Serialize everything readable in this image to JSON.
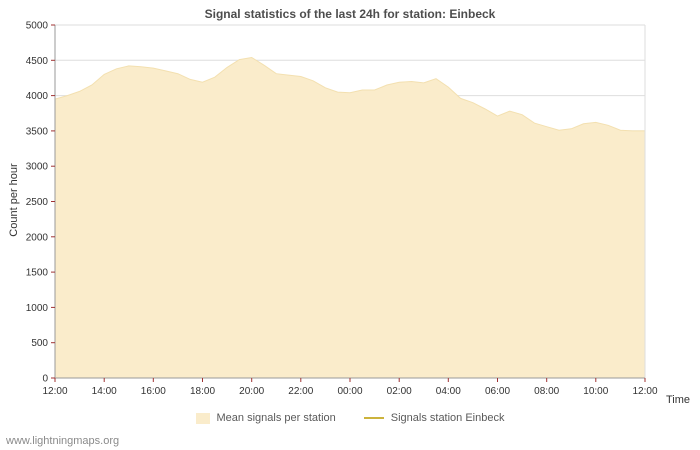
{
  "colors": {
    "area": "#faeccb",
    "area_edge": "#f3e0b0",
    "station_line": "#ccb33c",
    "grid": "#dedede",
    "axis": "#9a9a9a",
    "tick": "#a03232",
    "tick_text": "#333333",
    "title_text": "#4d4d4d"
  },
  "watermark": "www.lightningmaps.org",
  "chart_data": {
    "type": "area",
    "title": "Signal statistics of the last 24h for station: Einbeck",
    "xlabel": "Time",
    "ylabel": "Count per hour",
    "ylim": [
      0,
      5000
    ],
    "y_ticks": [
      0,
      500,
      1000,
      1500,
      2000,
      2500,
      3000,
      3500,
      4000,
      4500,
      5000
    ],
    "x_tick_labels": [
      "12:00",
      "14:00",
      "16:00",
      "18:00",
      "20:00",
      "22:00",
      "00:00",
      "02:00",
      "04:00",
      "06:00",
      "08:00",
      "10:00",
      "12:00"
    ],
    "x_hours_span": 24,
    "grid": "horizontal",
    "legend_position": "bottom-center",
    "legend": [
      {
        "label": "Mean signals per station",
        "type": "area",
        "color": "#faeccb"
      },
      {
        "label": "Signals station Einbeck",
        "type": "line",
        "color": "#ccb33c"
      }
    ],
    "series": [
      {
        "name": "Mean signals per station",
        "x": [
          0,
          0.5,
          1,
          1.5,
          2,
          2.5,
          3,
          3.5,
          4,
          4.5,
          5,
          5.5,
          6,
          6.5,
          7,
          7.5,
          8,
          8.5,
          9,
          9.5,
          10,
          10.5,
          11,
          11.5,
          12,
          12.5,
          13,
          13.5,
          14,
          14.5,
          15,
          15.5,
          16,
          16.5,
          17,
          17.5,
          18,
          18.5,
          19,
          19.5,
          20,
          20.5,
          21,
          21.5,
          22,
          22.5,
          23,
          23.5,
          24
        ],
        "values": [
          3950,
          4000,
          4060,
          4150,
          4300,
          4380,
          4420,
          4410,
          4390,
          4350,
          4310,
          4230,
          4190,
          4260,
          4400,
          4510,
          4540,
          4430,
          4310,
          4290,
          4270,
          4210,
          4110,
          4050,
          4040,
          4080,
          4080,
          4150,
          4190,
          4200,
          4180,
          4240,
          4120,
          3960,
          3900,
          3810,
          3710,
          3780,
          3730,
          3610,
          3560,
          3510,
          3530,
          3600,
          3620,
          3580,
          3510,
          3500,
          3500
        ]
      }
    ]
  }
}
